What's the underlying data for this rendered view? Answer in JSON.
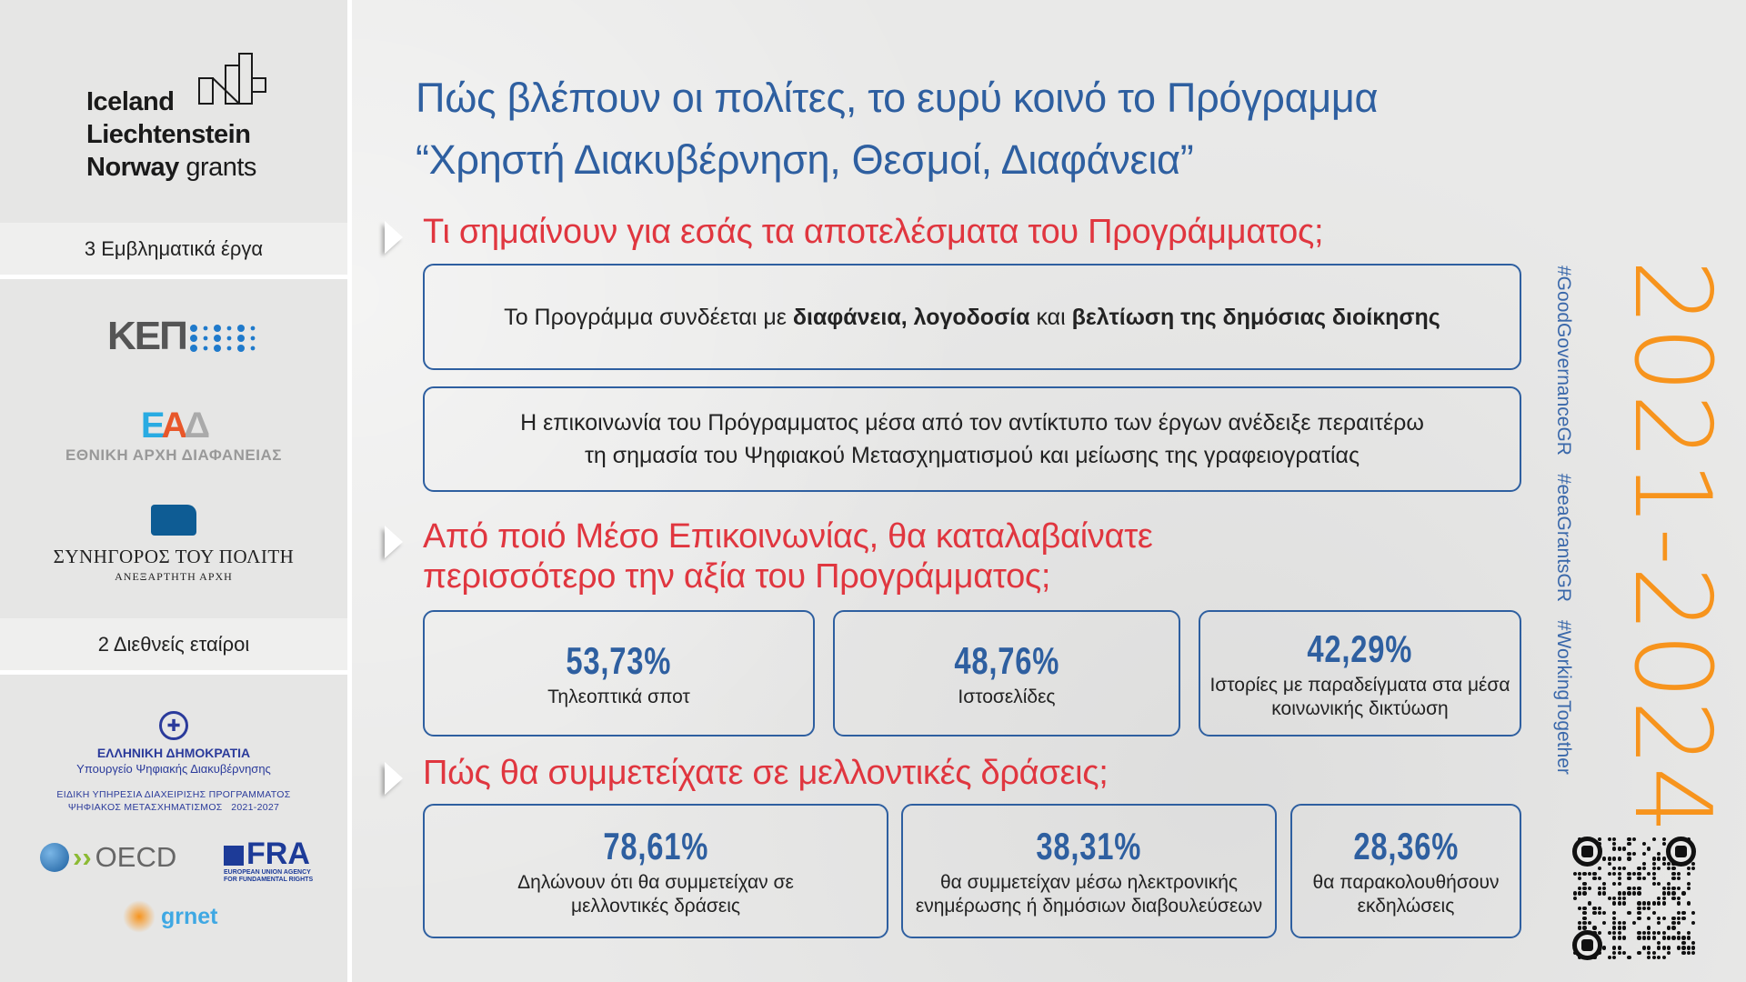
{
  "sidebar": {
    "logo_eea": {
      "line1": "Iceland",
      "line2": "Liechtenstein",
      "line3a": "Norway",
      "line3b": "grants"
    },
    "band_projects": "3 Εμβληματικά έργα",
    "logo_kep": "ΚΕΠ",
    "logo_eaad": {
      "mark": "ΕΑΔ",
      "name": "ΕΘΝΙΚΗ ΑΡΧΗ ΔΙΑΦΑΝΕΙΑΣ"
    },
    "logo_ombudsman": {
      "name": "ΣΥΝΗΓΟΡΟΣ ΤΟΥ ΠΟΛΙΤΗ",
      "sub": "ΑΝΕΞΑΡΤΗΤΗ ΑΡΧΗ"
    },
    "band_partners": "2 Διεθνείς εταίροι",
    "logo_gov": {
      "title": "ΕΛΛΗΝΙΚΗ ΔΗΜΟΚΡΑΤΙΑ",
      "ministry": "Υπουργείο Ψηφιακής Διακυβέρνησης",
      "service1": "ΕΙΔΙΚΗ ΥΠΗΡΕΣΙΑ ΔΙΑΧΕΙΡΙΣΗΣ ΠΡΟΓΡΑΜΜΑΤΟΣ",
      "service2": "ΨΗΦΙΑΚΟΣ ΜΕΤΑΣΧΗΜΑΤΙΣΜΟΣ   2021-2027"
    },
    "logo_oecd": "OECD",
    "logo_fra": {
      "mark": "FRA",
      "line1": "EUROPEAN UNION AGENCY",
      "line2": "FOR FUNDAMENTAL RIGHTS"
    },
    "logo_grnet": "grnet"
  },
  "main": {
    "title_line1": "Πώς βλέπουν οι πολίτες, το ευρύ κοινό το Πρόγραμμα",
    "title_line2": "“Χρηστή Διακυβέρνηση, Θεσμοί, Διαφάνεια”",
    "q1": "Τι σημαίνουν για εσάς τα αποτελέσματα του Προγράμματος;",
    "box1": {
      "p1": "Το Προγράμμα συνδέεται με ",
      "b1": "διαφάνεια, λογοδοσία",
      "p2": " και ",
      "b2": "βελτίωση της δημόσιας διοίκησης"
    },
    "box2": {
      "line1": "Η επικοινωνία του Πρόγραμματος μέσα από τον αντίκτυπο των έργων ανέδειξε περαιτέρω",
      "line2": "τη σημασία του Ψηφιακού Μετασχηματισμού και μείωσης της γραφειογρατίας"
    },
    "q2_line1": "Από ποιό Μέσο Επικοινωνίας, θα καταλαβαίνατε",
    "q2_line2": "περισσότερο την αξία του Προγράμματος;",
    "stats1": [
      {
        "value": "53,73%",
        "label": "Τηλεοπτικά σποτ"
      },
      {
        "value": "48,76%",
        "label": "Ιστοσελίδες"
      },
      {
        "value": "42,29%",
        "label": "Ιστορίες με παραδείγματα στα μέσα κοινωνικής δικτύωση"
      }
    ],
    "q3": "Πώς θα συμμετείχατε σε μελλοντικές δράσεις;",
    "stats2": [
      {
        "value": "78,61%",
        "label": "Δηλώνουν ότι θα συμμετείχαν σε μελλοντικές δράσεις"
      },
      {
        "value": "38,31%",
        "label": "θα συμμετείχαν μέσω ηλεκτρονικής ενημέρωσης ή δημόσιων διαβουλεύσεων"
      },
      {
        "value": "28,36%",
        "label": "θα παρακολουθήσουν εκδηλώσεις"
      }
    ]
  },
  "right": {
    "hashtags": "#GoodGovernanceGR #eeaGrantsGR #WorkingTogether",
    "years": "2021-2024",
    "qr_icon": "qr-code-icon"
  },
  "colors": {
    "title": "#2e5fa0",
    "question": "#e0363f",
    "year": "#f7941d"
  }
}
